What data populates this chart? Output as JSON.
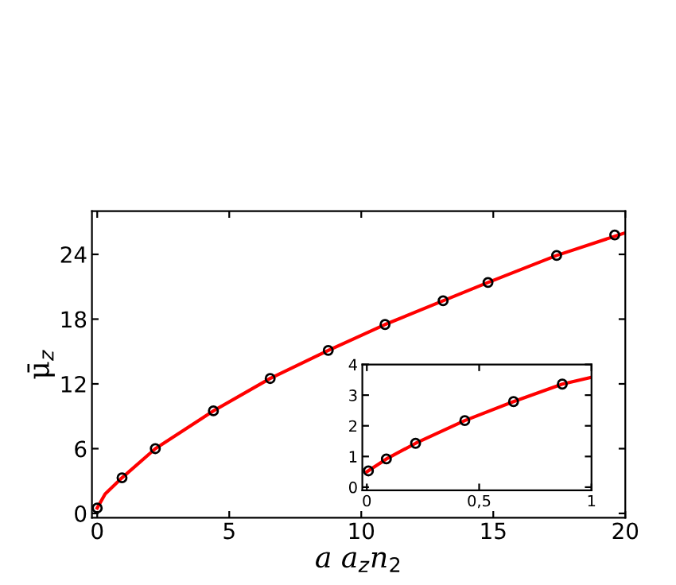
{
  "chart_data": [
    {
      "type": "scatter",
      "xlabel": "a a$_{z}$n$_{2}$",
      "ylabel": "μ̄$_{z}$",
      "xlim": [
        -0.2,
        20
      ],
      "ylim": [
        -0.4,
        28
      ],
      "xticks": [
        0,
        5,
        10,
        15,
        20
      ],
      "yticks": [
        0,
        6,
        12,
        18,
        24
      ],
      "grid": false,
      "legend": false,
      "series": [
        {
          "color": "#000000",
          "marker": "circle",
          "x": [
            0,
            0.94,
            2.2,
            4.4,
            6.55,
            8.75,
            10.9,
            13.1,
            14.8,
            17.4,
            19.6
          ],
          "values": [
            0.5,
            3.3,
            6.0,
            9.5,
            12.5,
            15.1,
            17.5,
            19.7,
            21.4,
            23.9,
            25.8
          ]
        },
        {
          "type": "line",
          "color": "#ff0000",
          "line_style": "solid",
          "x": [
            0,
            0.3,
            0.94,
            2.2,
            4.4,
            6.55,
            8.75,
            10.9,
            13.1,
            14.8,
            17.4,
            20
          ],
          "values": [
            0.5,
            1.8,
            3.3,
            6.0,
            9.5,
            12.5,
            15.1,
            17.5,
            19.7,
            21.4,
            23.9,
            26.0
          ]
        }
      ]
    },
    {
      "type": "scatter",
      "xlim": [
        -0.02,
        1
      ],
      "ylim": [
        -0.1,
        4
      ],
      "xticks": [
        0,
        {
          "value": 0.5,
          "label": "0,5"
        },
        1
      ],
      "yticks": [
        0,
        1,
        2,
        3,
        4
      ],
      "grid": false,
      "legend": false,
      "series": [
        {
          "color": "#000000",
          "marker": "circle",
          "x": [
            0.007,
            0.087,
            0.217,
            0.436,
            0.653,
            0.87
          ],
          "values": [
            0.53,
            0.92,
            1.43,
            2.17,
            2.79,
            3.36
          ]
        },
        {
          "type": "line",
          "color": "#ff0000",
          "line_style": "solid",
          "x": [
            0,
            0.087,
            0.217,
            0.436,
            0.653,
            0.87,
            1
          ],
          "values": [
            0.5,
            0.92,
            1.43,
            2.17,
            2.79,
            3.36,
            3.58
          ]
        }
      ]
    }
  ]
}
